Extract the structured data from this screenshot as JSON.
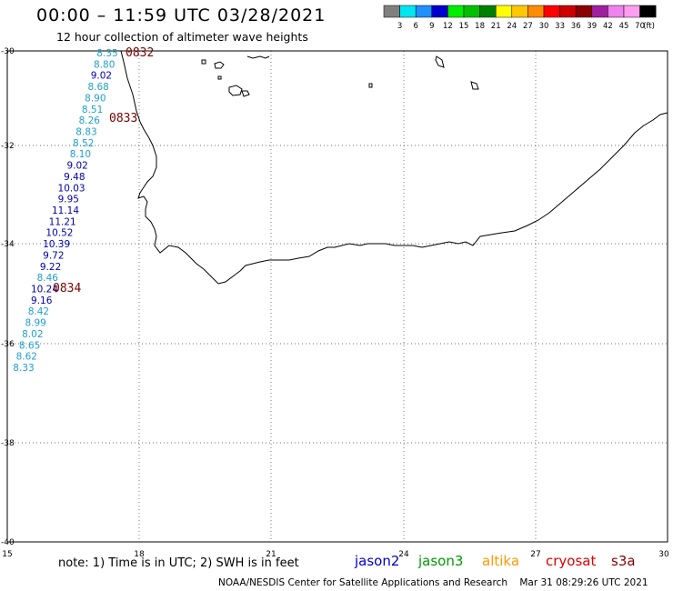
{
  "header": {
    "title": "00:00 – 11:59 UTC 03/28/2021",
    "subtitle": "12 hour collection of altimeter wave heights"
  },
  "colorbar": {
    "labels": [
      "3",
      "6",
      "9",
      "12",
      "15",
      "18",
      "21",
      "24",
      "27",
      "30",
      "33",
      "36",
      "39",
      "42",
      "45",
      "70"
    ],
    "unit": "(ft)",
    "colors": [
      "#808080",
      "#00e5ee",
      "#1e90ff",
      "#0000cd",
      "#00ee00",
      "#00c000",
      "#008000",
      "#ffff00",
      "#ffc800",
      "#ff8c00",
      "#ff0000",
      "#cd0000",
      "#8b0000",
      "#a020a0",
      "#ee82ee",
      "#ff9eee",
      "#000000"
    ]
  },
  "axes": {
    "x_ticks": [
      "15",
      "18",
      "21",
      "24",
      "27",
      "30"
    ],
    "y_ticks": [
      "-30",
      "-32",
      "-34",
      "-36",
      "-38",
      "-40"
    ]
  },
  "track": {
    "points": [
      {
        "value": "8.35",
        "color": "#1e9fd0"
      },
      {
        "value": "8.80",
        "color": "#1e9fd0"
      },
      {
        "value": "9.02",
        "color": "#0000b0"
      },
      {
        "value": "8.68",
        "color": "#1e9fd0"
      },
      {
        "value": "8.90",
        "color": "#1e9fd0"
      },
      {
        "value": "8.51",
        "color": "#1e9fd0"
      },
      {
        "value": "8.26",
        "color": "#1e9fd0"
      },
      {
        "value": "8.83",
        "color": "#1e9fd0"
      },
      {
        "value": "8.52",
        "color": "#1e9fd0"
      },
      {
        "value": "8.10",
        "color": "#1e9fd0"
      },
      {
        "value": "9.02",
        "color": "#0000b0"
      },
      {
        "value": "9.48",
        "color": "#0000b0"
      },
      {
        "value": "10.03",
        "color": "#0000b0"
      },
      {
        "value": "9.95",
        "color": "#0000b0"
      },
      {
        "value": "11.14",
        "color": "#0000b0"
      },
      {
        "value": "11.21",
        "color": "#0000b0"
      },
      {
        "value": "10.52",
        "color": "#0000b0"
      },
      {
        "value": "10.39",
        "color": "#0000b0"
      },
      {
        "value": "9.72",
        "color": "#0000b0"
      },
      {
        "value": "9.22",
        "color": "#0000b0"
      },
      {
        "value": "8.46",
        "color": "#1e9fd0"
      },
      {
        "value": "10.24",
        "color": "#0000b0"
      },
      {
        "value": "9.16",
        "color": "#0000b0"
      },
      {
        "value": "8.42",
        "color": "#1e9fd0"
      },
      {
        "value": "8.99",
        "color": "#1e9fd0"
      },
      {
        "value": "8.02",
        "color": "#1e9fd0"
      },
      {
        "value": "8.65",
        "color": "#1e9fd0"
      },
      {
        "value": "8.62",
        "color": "#1e9fd0"
      },
      {
        "value": "8.33",
        "color": "#1e9fd0"
      }
    ],
    "times": [
      "0832",
      "0833",
      "0834"
    ]
  },
  "footer": {
    "note": "note: 1) Time is in UTC; 2) SWH is in feet",
    "satellites": [
      {
        "name": "jason2",
        "color": "#0000cc"
      },
      {
        "name": "jason3",
        "color": "#009900"
      },
      {
        "name": "altika",
        "color": "#ff9900"
      },
      {
        "name": "cryosat",
        "color": "#dd0000"
      },
      {
        "name": "s3a",
        "color": "#880000"
      }
    ],
    "credit": "NOAA/NESDIS Center for Satellite Applications and Research    Mar 31 08:29:26 UTC 2021"
  }
}
